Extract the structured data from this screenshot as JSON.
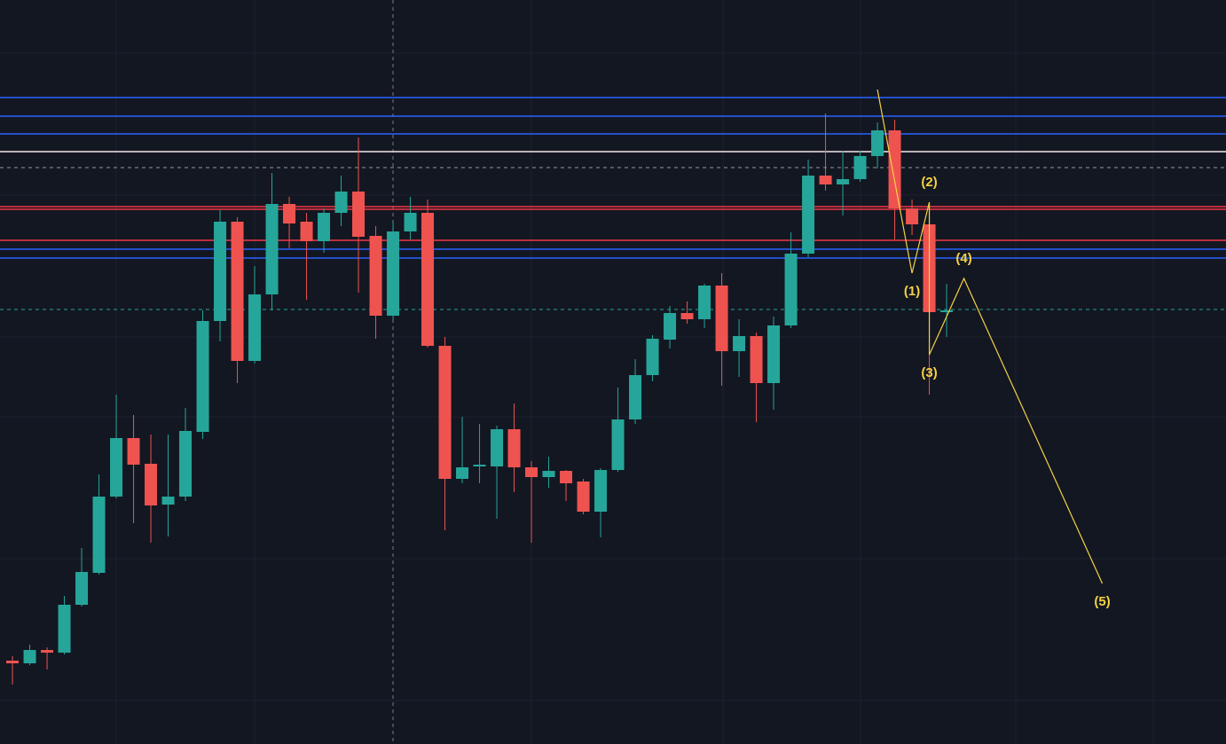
{
  "chart_data": {
    "type": "candlestick",
    "xlim": [
      -0.72,
      70.15
    ],
    "ylim": [
      0,
      839
    ],
    "up_color": "#26a69a",
    "down_color": "#ef5350",
    "open": [
      94,
      91,
      106,
      103,
      157,
      193,
      279,
      345,
      316,
      270,
      279,
      352,
      477,
      589,
      432,
      507,
      609,
      589,
      567,
      599,
      623,
      573,
      483,
      578,
      599,
      449,
      299,
      313,
      313,
      355,
      312,
      301,
      308,
      296,
      262,
      309,
      366,
      416,
      456,
      486,
      479,
      517,
      443,
      460,
      407,
      472,
      553,
      641,
      631,
      637,
      663,
      692,
      604,
      586,
      487
    ],
    "high": [
      99,
      112,
      109,
      167,
      221,
      304,
      394,
      371,
      349,
      349,
      379,
      489,
      602,
      594,
      539,
      644,
      617,
      599,
      604,
      641,
      684,
      584,
      589,
      617,
      614,
      459,
      369,
      361,
      359,
      384,
      319,
      324,
      309,
      299,
      311,
      402,
      434,
      461,
      494,
      499,
      519,
      531,
      479,
      464,
      482,
      577,
      659,
      711,
      669,
      669,
      701,
      704,
      614,
      591,
      519
    ],
    "low": [
      67,
      89,
      84,
      101,
      155,
      191,
      277,
      249,
      227,
      234,
      274,
      344,
      454,
      407,
      429,
      489,
      559,
      501,
      554,
      584,
      509,
      457,
      479,
      569,
      447,
      241,
      294,
      294,
      254,
      284,
      227,
      289,
      274,
      259,
      233,
      307,
      361,
      409,
      446,
      474,
      469,
      404,
      414,
      363,
      377,
      469,
      549,
      624,
      596,
      634,
      649,
      569,
      574,
      394,
      459
    ],
    "close": [
      91,
      106,
      103,
      157,
      194,
      279,
      345,
      315,
      269,
      279,
      353,
      477,
      589,
      432,
      507,
      609,
      587,
      567,
      599,
      623,
      572,
      483,
      578,
      599,
      449,
      299,
      312,
      315,
      355,
      312,
      301,
      308,
      294,
      262,
      309,
      366,
      416,
      457,
      486,
      479,
      517,
      443,
      460,
      407,
      472,
      553,
      641,
      631,
      637,
      663,
      692,
      604,
      586,
      487,
      489
    ],
    "levels": [
      {
        "value": 729,
        "color": "#2962ff"
      },
      {
        "value": 708,
        "color": "#2962ff"
      },
      {
        "value": 688,
        "color": "#2962ff"
      },
      {
        "value": 668,
        "color": "#f5e6e6"
      },
      {
        "value": 650,
        "color": "#9598a1",
        "dashed": true
      },
      {
        "value": 606,
        "color": "#f23645"
      },
      {
        "value": 603,
        "color": "#f23645"
      },
      {
        "value": 568,
        "color": "#f23645"
      },
      {
        "value": 558,
        "color": "#2962ff"
      },
      {
        "value": 548,
        "color": "#2962ff"
      },
      {
        "value": 490,
        "color": "#26a69a",
        "dashed": true
      }
    ],
    "wave": {
      "color": "#f5d142",
      "x": [
        50,
        52,
        53,
        53,
        55,
        63
      ],
      "values": [
        738,
        531,
        611,
        439,
        525,
        181
      ],
      "labels": [
        null,
        "(1)",
        "(2)",
        "(3)",
        "(4)",
        "(5)"
      ]
    }
  }
}
